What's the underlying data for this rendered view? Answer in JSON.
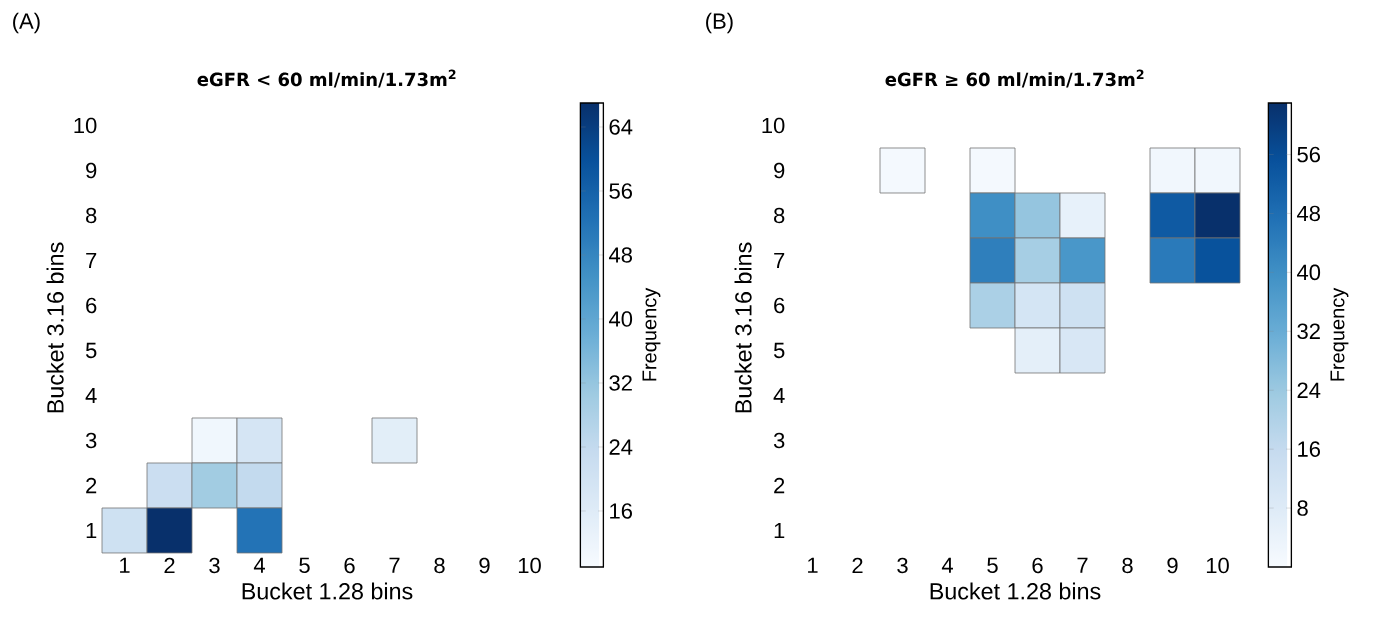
{
  "chart_data": [
    {
      "type": "heatmap",
      "title": "**eGFR < 60 ml/min/1.73m$^{2}$**",
      "xlabel": "Bucket 1.28 bins",
      "ylabel": "Bucket 3.16 bins",
      "clabel": "Frequency",
      "annotations": [
        "(A)"
      ],
      "categories": [
        "1",
        "2",
        "3",
        "4",
        "5",
        "6",
        "7",
        "8",
        "9",
        "10"
      ],
      "y_categories": [
        "10",
        "9",
        "8",
        "7",
        "6",
        "5",
        "4",
        "3",
        "2",
        "1"
      ],
      "cells": [
        [
          null,
          null,
          null,
          null,
          null,
          null,
          null,
          null,
          null,
          null
        ],
        [
          null,
          null,
          null,
          null,
          null,
          null,
          null,
          null,
          null,
          null
        ],
        [
          null,
          null,
          null,
          null,
          null,
          null,
          null,
          null,
          null,
          null
        ],
        [
          null,
          null,
          null,
          null,
          null,
          null,
          null,
          null,
          null,
          null
        ],
        [
          null,
          null,
          null,
          null,
          null,
          null,
          null,
          null,
          null,
          null
        ],
        [
          null,
          null,
          null,
          null,
          null,
          null,
          null,
          null,
          null,
          null
        ],
        [
          null,
          null,
          null,
          null,
          null,
          null,
          null,
          null,
          null,
          null
        ],
        [
          null,
          null,
          11,
          19,
          null,
          null,
          15,
          null,
          null,
          null
        ],
        [
          null,
          22,
          30,
          24,
          null,
          null,
          null,
          null,
          null,
          null
        ],
        [
          21,
          67,
          null,
          52,
          null,
          null,
          null,
          null,
          null,
          null
        ]
      ],
      "clim": [
        9,
        67
      ],
      "cticks": [
        16,
        24,
        32,
        40,
        48,
        56,
        64
      ]
    },
    {
      "type": "heatmap",
      "title": "**eGFR ≥ 60 ml/min/1.73m$^{2}$**",
      "xlabel": "Bucket 1.28 bins",
      "ylabel": "Bucket 3.16 bins",
      "clabel": "Frequency",
      "annotations": [
        "(B)"
      ],
      "categories": [
        "1",
        "2",
        "3",
        "4",
        "5",
        "6",
        "7",
        "8",
        "9",
        "10"
      ],
      "y_categories": [
        "10",
        "9",
        "8",
        "7",
        "6",
        "5",
        "4",
        "3",
        "2",
        "1"
      ],
      "cells": [
        [
          null,
          null,
          null,
          null,
          null,
          null,
          null,
          null,
          null,
          null
        ],
        [
          null,
          null,
          1,
          null,
          1,
          null,
          null,
          null,
          2,
          2
        ],
        [
          null,
          null,
          null,
          null,
          40,
          25,
          5,
          null,
          53,
          63
        ],
        [
          null,
          null,
          null,
          null,
          44,
          22,
          38,
          null,
          45,
          55
        ],
        [
          null,
          null,
          null,
          null,
          21,
          11,
          13,
          null,
          null,
          null
        ],
        [
          null,
          null,
          null,
          null,
          null,
          6,
          10,
          null,
          null,
          null
        ],
        [
          null,
          null,
          null,
          null,
          null,
          null,
          null,
          null,
          null,
          null
        ],
        [
          null,
          null,
          null,
          null,
          null,
          null,
          null,
          null,
          null,
          null
        ],
        [
          null,
          null,
          null,
          null,
          null,
          null,
          null,
          null,
          null,
          null
        ],
        [
          null,
          null,
          null,
          null,
          null,
          null,
          null,
          null,
          null,
          null
        ]
      ],
      "clim": [
        0,
        63
      ],
      "cticks": [
        8,
        16,
        24,
        32,
        40,
        48,
        56
      ]
    }
  ]
}
